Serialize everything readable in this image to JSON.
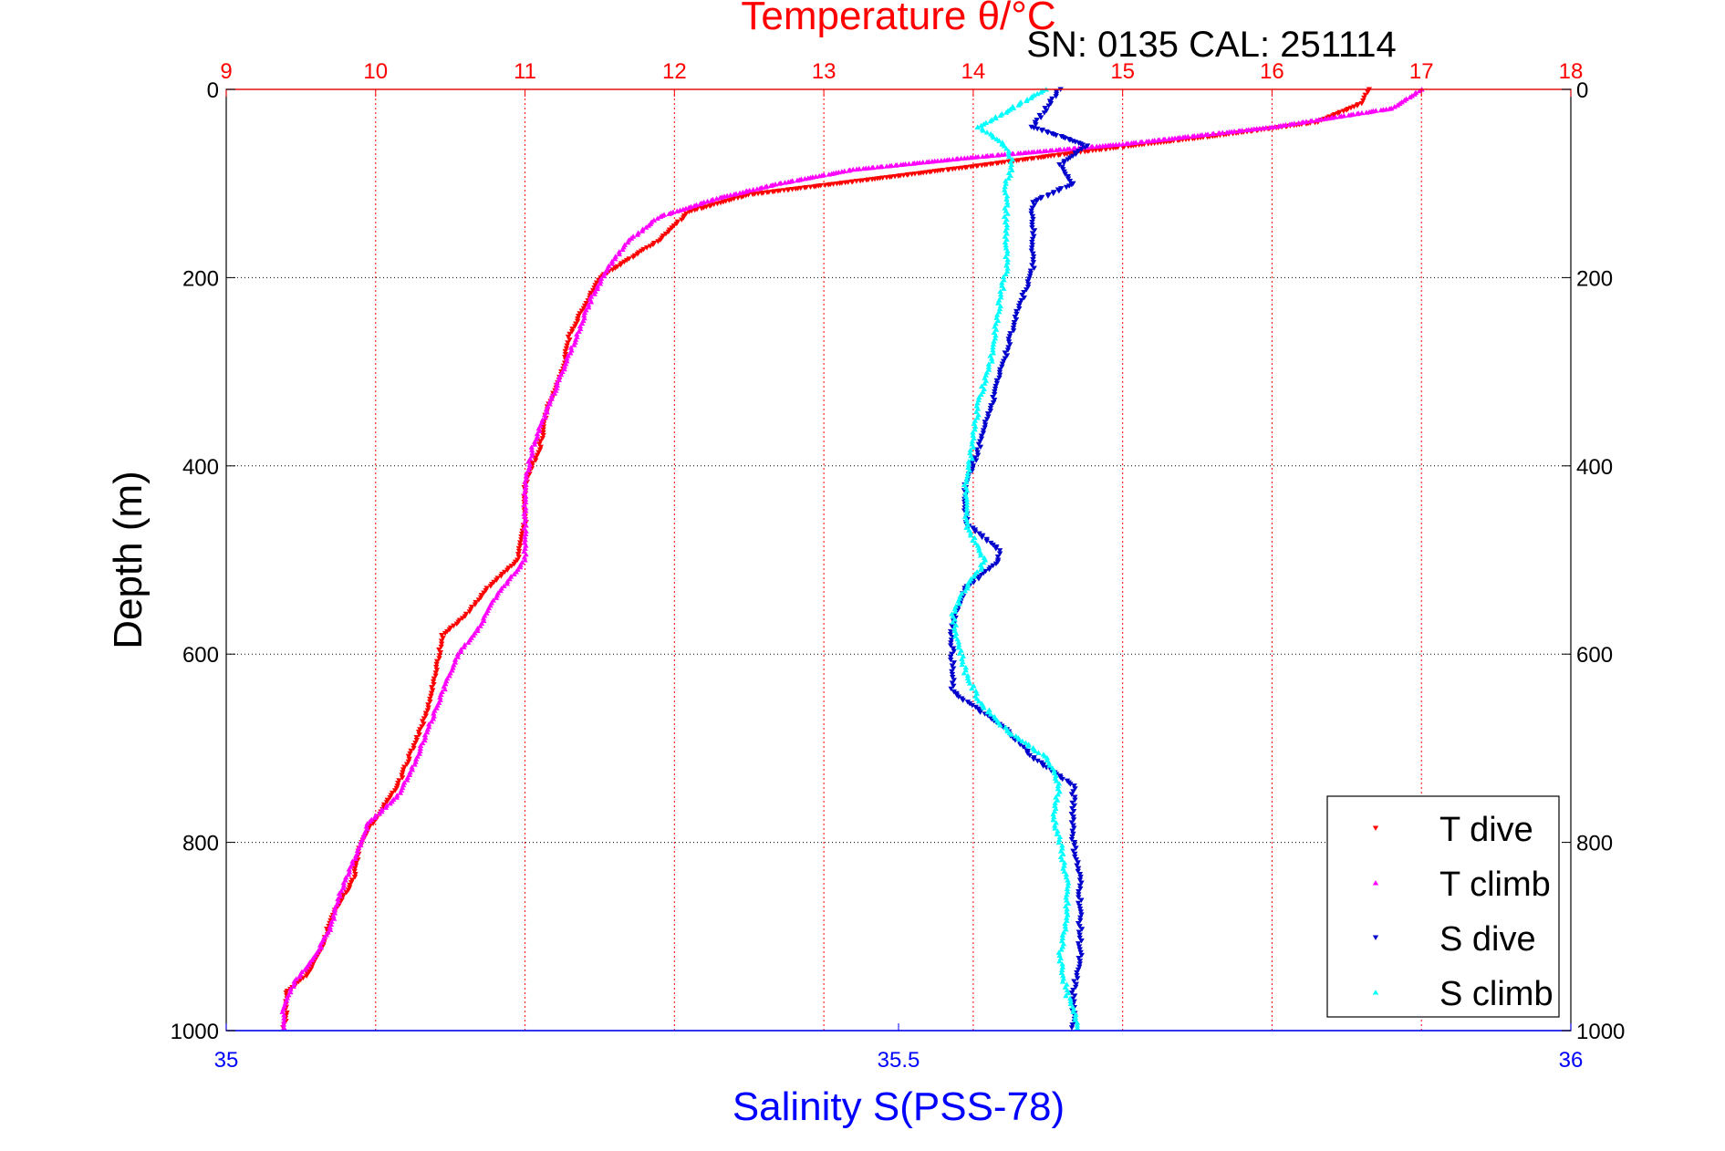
{
  "colors": {
    "t_dive": "#ff0000",
    "t_climb": "#ff00ff",
    "s_dive": "#0000cc",
    "s_climb": "#00ffff",
    "temp_axis": "#ff0000",
    "sal_axis": "#0000ff",
    "grid_temp": "#ff0000",
    "grid_depth": "#000000"
  },
  "chart_data": {
    "type": "scatter",
    "title": "Temperature θ/°C",
    "subtitle": "SN: 0135  CAL: 251114",
    "ylabel": "Depth (m)",
    "xlabel_bottom": "Salinity S(PSS-78)",
    "xlabel_top": "Temperature θ/°C",
    "ylim": [
      0,
      1000
    ],
    "y_reversed": true,
    "temp_xlim": [
      9,
      18
    ],
    "sal_xlim": [
      35,
      36
    ],
    "temp_ticks": [
      "9",
      "10",
      "11",
      "12",
      "13",
      "14",
      "15",
      "16",
      "17",
      "18"
    ],
    "sal_ticks": [
      "35",
      "35.5",
      "36"
    ],
    "depth_ticks": [
      "0",
      "200",
      "400",
      "600",
      "800",
      "1000"
    ],
    "grid": "on",
    "legend_placement": "bottom-right",
    "legend": [
      "T dive",
      "T climb",
      "S dive",
      "S climb"
    ],
    "series": [
      {
        "name": "T dive",
        "axis": "temperature",
        "marker": "triangle-down",
        "points": [
          [
            16.65,
            0
          ],
          [
            16.6,
            15
          ],
          [
            16.3,
            35
          ],
          [
            15.6,
            50
          ],
          [
            14.8,
            65
          ],
          [
            14.0,
            82
          ],
          [
            13.2,
            98
          ],
          [
            12.5,
            112
          ],
          [
            12.1,
            130
          ],
          [
            11.9,
            160
          ],
          [
            11.7,
            180
          ],
          [
            11.5,
            200
          ],
          [
            11.4,
            230
          ],
          [
            11.3,
            260
          ],
          [
            11.25,
            300
          ],
          [
            11.15,
            340
          ],
          [
            11.1,
            380
          ],
          [
            11.0,
            420
          ],
          [
            11.0,
            460
          ],
          [
            10.95,
            500
          ],
          [
            10.75,
            530
          ],
          [
            10.6,
            560
          ],
          [
            10.45,
            580
          ],
          [
            10.4,
            620
          ],
          [
            10.35,
            660
          ],
          [
            10.25,
            700
          ],
          [
            10.15,
            740
          ],
          [
            10.0,
            775
          ],
          [
            9.9,
            800
          ],
          [
            9.85,
            840
          ],
          [
            9.7,
            880
          ],
          [
            9.65,
            910
          ],
          [
            9.55,
            940
          ],
          [
            9.4,
            960
          ],
          [
            9.4,
            990
          ],
          [
            9.38,
            1000
          ]
        ]
      },
      {
        "name": "T climb",
        "axis": "temperature",
        "marker": "triangle-up",
        "points": [
          [
            17.0,
            0
          ],
          [
            16.8,
            20
          ],
          [
            16.0,
            40
          ],
          [
            15.0,
            58
          ],
          [
            14.0,
            72
          ],
          [
            13.2,
            85
          ],
          [
            12.7,
            100
          ],
          [
            12.3,
            115
          ],
          [
            11.9,
            135
          ],
          [
            11.7,
            160
          ],
          [
            11.55,
            190
          ],
          [
            11.45,
            220
          ],
          [
            11.35,
            260
          ],
          [
            11.25,
            300
          ],
          [
            11.15,
            340
          ],
          [
            11.05,
            380
          ],
          [
            11.0,
            420
          ],
          [
            11.0,
            460
          ],
          [
            11.0,
            500
          ],
          [
            10.8,
            540
          ],
          [
            10.7,
            570
          ],
          [
            10.55,
            600
          ],
          [
            10.45,
            640
          ],
          [
            10.35,
            680
          ],
          [
            10.25,
            720
          ],
          [
            10.15,
            750
          ],
          [
            9.95,
            780
          ],
          [
            9.85,
            820
          ],
          [
            9.75,
            860
          ],
          [
            9.7,
            890
          ],
          [
            9.6,
            920
          ],
          [
            9.45,
            950
          ],
          [
            9.38,
            980
          ],
          [
            9.38,
            1000
          ]
        ]
      },
      {
        "name": "S dive",
        "axis": "salinity",
        "marker": "triangle-down",
        "points": [
          [
            35.62,
            0
          ],
          [
            35.61,
            20
          ],
          [
            35.6,
            40
          ],
          [
            35.64,
            60
          ],
          [
            35.62,
            80
          ],
          [
            35.63,
            100
          ],
          [
            35.6,
            120
          ],
          [
            35.6,
            150
          ],
          [
            35.6,
            190
          ],
          [
            35.59,
            230
          ],
          [
            35.58,
            280
          ],
          [
            35.57,
            330
          ],
          [
            35.56,
            380
          ],
          [
            35.55,
            420
          ],
          [
            35.55,
            460
          ],
          [
            35.575,
            490
          ],
          [
            35.575,
            500
          ],
          [
            35.55,
            530
          ],
          [
            35.54,
            570
          ],
          [
            35.54,
            600
          ],
          [
            35.54,
            640
          ],
          [
            35.56,
            660
          ],
          [
            35.58,
            680
          ],
          [
            35.6,
            710
          ],
          [
            35.63,
            740
          ],
          [
            35.63,
            770
          ],
          [
            35.63,
            800
          ],
          [
            35.635,
            840
          ],
          [
            35.635,
            880
          ],
          [
            35.635,
            920
          ],
          [
            35.63,
            960
          ],
          [
            35.63,
            1000
          ]
        ]
      },
      {
        "name": "S climb",
        "axis": "salinity",
        "marker": "triangle-up",
        "points": [
          [
            35.61,
            0
          ],
          [
            35.59,
            15
          ],
          [
            35.56,
            40
          ],
          [
            35.58,
            60
          ],
          [
            35.585,
            80
          ],
          [
            35.58,
            100
          ],
          [
            35.58,
            120
          ],
          [
            35.58,
            150
          ],
          [
            35.58,
            190
          ],
          [
            35.575,
            230
          ],
          [
            35.57,
            280
          ],
          [
            35.56,
            330
          ],
          [
            35.555,
            380
          ],
          [
            35.55,
            420
          ],
          [
            35.55,
            460
          ],
          [
            35.56,
            490
          ],
          [
            35.565,
            500
          ],
          [
            35.55,
            530
          ],
          [
            35.54,
            560
          ],
          [
            35.545,
            590
          ],
          [
            35.55,
            620
          ],
          [
            35.56,
            650
          ],
          [
            35.58,
            680
          ],
          [
            35.61,
            710
          ],
          [
            35.62,
            740
          ],
          [
            35.615,
            770
          ],
          [
            35.62,
            800
          ],
          [
            35.625,
            840
          ],
          [
            35.625,
            880
          ],
          [
            35.62,
            920
          ],
          [
            35.625,
            960
          ],
          [
            35.635,
            1000
          ]
        ]
      }
    ]
  }
}
